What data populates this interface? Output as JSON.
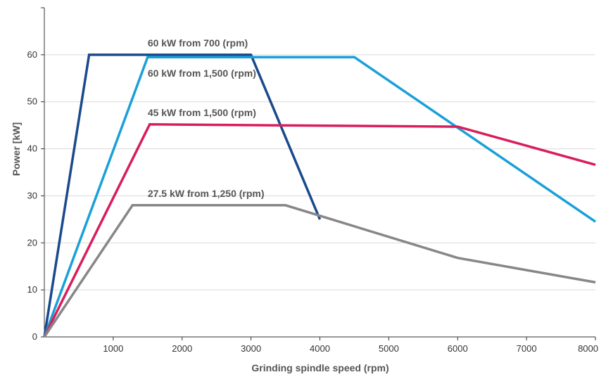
{
  "chart_data": {
    "type": "line",
    "xlabel": "Grinding spindle speed (rpm)",
    "ylabel": "Power [kW]",
    "xlim": [
      0,
      8000
    ],
    "ylim": [
      0,
      70
    ],
    "x_ticks": [
      1000,
      2000,
      3000,
      4000,
      5000,
      6000,
      7000,
      8000
    ],
    "x_tick_labels": [
      "1000",
      "2000",
      "3000",
      "4000",
      "5000",
      "6000",
      "7000",
      "8000"
    ],
    "y_ticks": [
      0,
      10,
      20,
      30,
      40,
      50,
      60
    ],
    "y_tick_labels": [
      "0",
      "10",
      "20",
      "30",
      "40",
      "50",
      "60"
    ],
    "grid": "horizontal",
    "series": [
      {
        "label": "60 kW from 700 (rpm)",
        "color": "#1a4a8c",
        "points": [
          [
            0,
            0
          ],
          [
            650,
            60
          ],
          [
            3000,
            60
          ],
          [
            4000,
            25
          ]
        ]
      },
      {
        "label": "60 kW from 1,500 (rpm)",
        "color": "#1aa0d8",
        "points": [
          [
            0,
            0
          ],
          [
            1500,
            59.5
          ],
          [
            4500,
            59.5
          ],
          [
            8000,
            24.5
          ]
        ]
      },
      {
        "label": "45 kW from 1,500 (rpm)",
        "color": "#d81e5b",
        "points": [
          [
            0,
            0
          ],
          [
            1530,
            45.2
          ],
          [
            6000,
            44.7
          ],
          [
            8000,
            36.6
          ]
        ]
      },
      {
        "label": "27.5 kW from 1,250 (rpm)",
        "color": "#878787",
        "points": [
          [
            0,
            0
          ],
          [
            1280,
            28
          ],
          [
            3500,
            28
          ],
          [
            6000,
            16.8
          ],
          [
            8000,
            11.6
          ]
        ]
      }
    ]
  }
}
